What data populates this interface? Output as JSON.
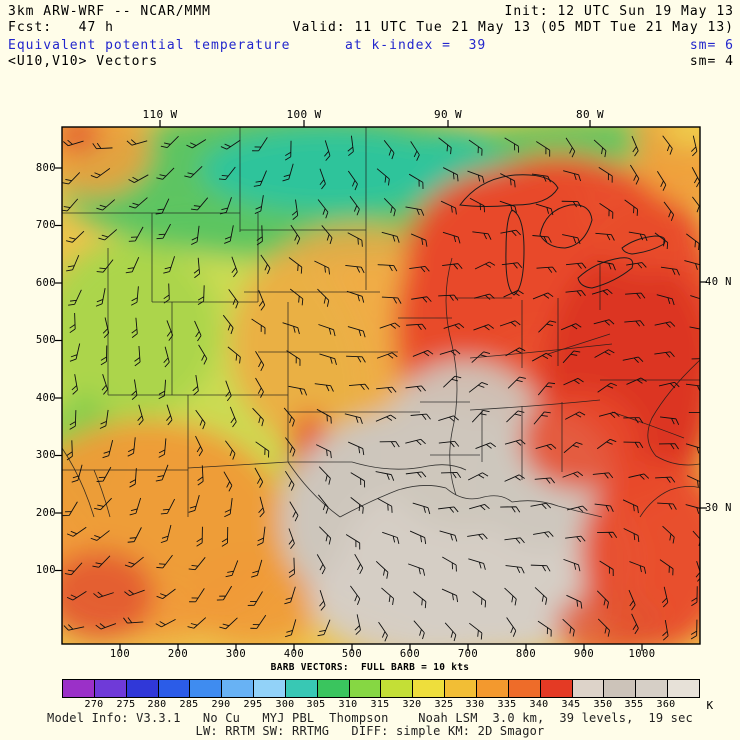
{
  "header": {
    "model": "3km ARW-WRF -- NCAR/MMM",
    "init": "Init: 12 UTC Sun 19 May 13",
    "fcst": "Fcst:   47 h",
    "valid": "Valid: 11 UTC Tue 21 May 13 (05 MDT Tue 21 May 13)",
    "field": "Equivalent potential temperature",
    "at_level": "at k-index =  39",
    "sm_top": "sm= 6",
    "vectors": "<U10,V10> Vectors",
    "sm_bottom": "sm= 4",
    "accent_color": "#2226CC"
  },
  "axes": {
    "top": [
      "110 W",
      "100 W",
      "90 W",
      "80 W"
    ],
    "right": [
      "40 N",
      "30 N"
    ],
    "left": [
      "800",
      "700",
      "600",
      "500",
      "400",
      "300",
      "200",
      "100"
    ],
    "bottom": [
      "100",
      "200",
      "300",
      "400",
      "500",
      "600",
      "700",
      "800",
      "900",
      "1000"
    ]
  },
  "legend": {
    "caption": "BARB VECTORS:  FULL BARB = 10 kts",
    "unit": "K",
    "ticks": [
      "270",
      "275",
      "280",
      "285",
      "290",
      "295",
      "300",
      "305",
      "310",
      "315",
      "320",
      "325",
      "330",
      "335",
      "340",
      "345",
      "350",
      "355",
      "360"
    ],
    "colors": [
      "#9B30C8",
      "#6F3AD8",
      "#3038D8",
      "#2B5CE8",
      "#3F8CF0",
      "#68B2F4",
      "#92D2F8",
      "#38C8B4",
      "#3AC55E",
      "#86D743",
      "#C4DF36",
      "#EEDE3C",
      "#F2BE35",
      "#F3992E",
      "#EE6C29",
      "#E43A24",
      "#DDD3C9",
      "#CCC3B9",
      "#D6CFC6",
      "#E7E1D8"
    ]
  },
  "footer": {
    "line1": "Model Info: V3.3.1   No Cu   MYJ PBL  Thompson    Noah LSM  3.0 km,  39 levels,  19 sec",
    "line2": "LW: RRTM SW: RRTMG   DIFF: simple KM: 2D Smagor"
  },
  "chart_data": {
    "type": "heatmap",
    "title": "Equivalent potential temperature at k-index = 39",
    "subtitle": "<U10,V10> Vectors, full barb = 10 kts",
    "units": "K",
    "model": "3km ARW-WRF -- NCAR/MMM",
    "init": "12 UTC Sun 19 May 13",
    "forecast_hour": 47,
    "valid": "11 UTC Tue 21 May 13 (05 MDT Tue 21 May 13)",
    "colorbar_ticks": [
      270,
      275,
      280,
      285,
      290,
      295,
      300,
      305,
      310,
      315,
      320,
      325,
      330,
      335,
      340,
      345,
      350,
      355,
      360
    ],
    "x_ticks": [
      100,
      200,
      300,
      400,
      500,
      600,
      700,
      800,
      900,
      1000
    ],
    "y_ticks": [
      100,
      200,
      300,
      400,
      500,
      600,
      700,
      800
    ],
    "lon_labels": [
      "110 W",
      "100 W",
      "90 W",
      "80 W"
    ],
    "lat_labels": [
      "40 N",
      "30 N"
    ],
    "legend_position": "bottom",
    "pattern": [
      "cool theta-e 300-310 K (green/teal) across Montana, Dakotas, Minnesota and upper Great Lakes",
      "315-325 K (yellow-green/yellow) over Great Basin, Rockies and central high plains",
      "325-335 K (orange) over Southwest, Nebraska/Kansas and Northeast corner",
      "335-345 K (red) over Iowa/Illinois/Wisconsin-Michigan, Ohio Valley, East and Southeast coasts and Gulf",
      "345-355 K maximum (gray) over Texas, Gulf Coast, Louisiana, Arkansas and lower Mississippi Valley"
    ]
  }
}
